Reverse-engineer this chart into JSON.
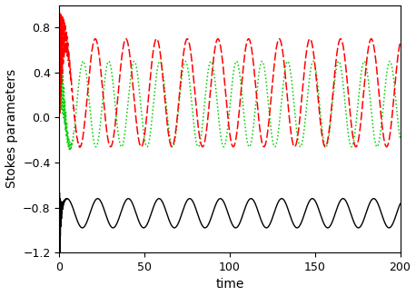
{
  "xlabel": "time",
  "ylabel": "Stokes parameters",
  "xlim": [
    0,
    200
  ],
  "ylim": [
    -1.2,
    1.0
  ],
  "xticks": [
    0,
    50,
    100,
    150,
    200
  ],
  "yticks": [
    -1.2,
    -0.8,
    -0.4,
    0.0,
    0.4,
    0.8
  ],
  "black_color": "#000000",
  "red_color": "#ff0000",
  "green_color": "#00cc00",
  "figsize": [
    4.58,
    3.26
  ],
  "dpi": 100
}
